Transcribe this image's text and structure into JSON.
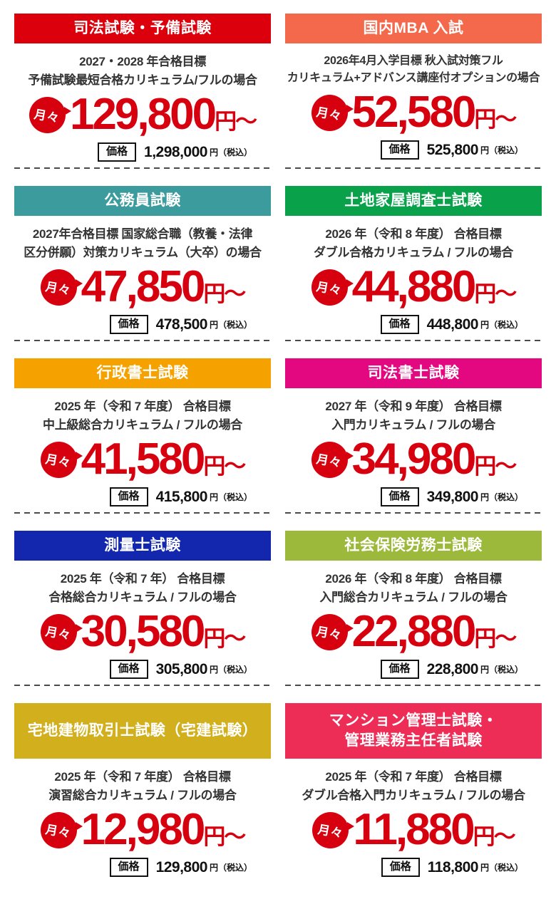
{
  "shared": {
    "badge_label": "月々",
    "price_suffix": "円〜",
    "note_label": "価格",
    "tax_note": "円（税込）",
    "price_color": "#d7000f",
    "separator_color": "#4a4a4a"
  },
  "cards": [
    {
      "title": "司法試験・予備試験",
      "header_color": "#dc000c",
      "description": "2027・2028 年合格目標\n予備試験最短合格カリキュラム/フルの場合",
      "monthly_price": "129,800",
      "full_price": "1,298,000"
    },
    {
      "title": "国内MBA 入試",
      "header_color": "#f4684c",
      "description": "2026年4月入学目標 秋入試対策フル\nカリキュラム+アドバンス講座付オプションの場合",
      "monthly_price": "52,580",
      "full_price": "525,800"
    },
    {
      "title": "公務員試験",
      "header_color": "#3b9b9d",
      "description": "2027年合格目標 国家総合職（教養・法律\n区分併願）対策カリキュラム（大卒）の場合",
      "monthly_price": "47,850",
      "full_price": "478,500"
    },
    {
      "title": "土地家屋調査士試験",
      "header_color": "#09a24b",
      "description": "2026 年（令和 8 年度） 合格目標\nダブル合格カリキュラム / フルの場合",
      "monthly_price": "44,880",
      "full_price": "448,800"
    },
    {
      "title": "行政書士試験",
      "header_color": "#f5a200",
      "description": "2025 年（令和 7 年度） 合格目標\n中上級総合カリキュラム / フルの場合",
      "monthly_price": "41,580",
      "full_price": "415,800"
    },
    {
      "title": "司法書士試験",
      "header_color": "#e30880",
      "description": "2027 年（令和 9 年度） 合格目標\n入門カリキュラム / フルの場合",
      "monthly_price": "34,980",
      "full_price": "349,800"
    },
    {
      "title": "測量士試験",
      "header_color": "#1227ae",
      "description": "2025 年（令和 7 年） 合格目標\n合格総合カリキュラム / フルの場合",
      "monthly_price": "30,580",
      "full_price": "305,800"
    },
    {
      "title": "社会保険労務士試験",
      "header_color": "#9cb93c",
      "description": "2026 年（令和 8 年度） 合格目標\n入門総合カリキュラム / フルの場合",
      "monthly_price": "22,880",
      "full_price": "228,800"
    },
    {
      "title": "宅地建物取引士試験（宅建試験）",
      "header_color": "#d2b01d",
      "description": "2025 年（令和 7 年度） 合格目標\n演習総合カリキュラム / フルの場合",
      "monthly_price": "12,980",
      "full_price": "129,800"
    },
    {
      "title": "マンション管理士試験・\n管理業務主任者試験",
      "header_color": "#ee2d56",
      "description": "2025 年（令和 7 年度） 合格目標\nダブル合格入門カリキュラム / フルの場合",
      "monthly_price": "11,880",
      "full_price": "118,800"
    }
  ]
}
